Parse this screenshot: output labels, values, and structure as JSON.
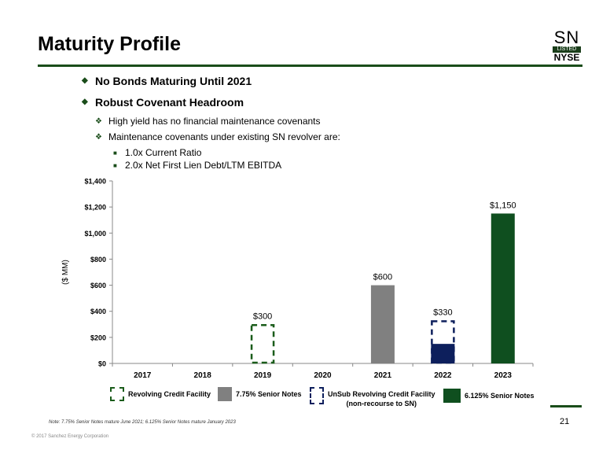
{
  "header": {
    "title": "Maturity Profile",
    "logo": {
      "top": "SN",
      "middle": "LISTED",
      "bottom": "NYSE"
    }
  },
  "bullets": [
    {
      "text": "No Bonds Maturing Until 2021"
    },
    {
      "text": "Robust Covenant Headroom"
    }
  ],
  "sub_bullets": [
    "High yield has no financial maintenance covenants",
    "Maintenance covenants under existing SN revolver are:"
  ],
  "sub_sub_bullets": [
    "1.0x Current Ratio",
    "2.0x Net First Lien Debt/LTM EBITDA"
  ],
  "chart_data": {
    "type": "bar",
    "title": "",
    "xlabel": "",
    "ylabel": "($ MM)",
    "ylim": [
      0,
      1400
    ],
    "yticks": [
      0,
      200,
      400,
      600,
      800,
      1000,
      1200,
      1400
    ],
    "ytick_labels": [
      "$0",
      "$200",
      "$400",
      "$600",
      "$800",
      "$1,000",
      "$1,200",
      "$1,400"
    ],
    "categories": [
      "2017",
      "2018",
      "2019",
      "2020",
      "2021",
      "2022",
      "2023"
    ],
    "series": [
      {
        "name": "Revolving Credit Facility",
        "color": "#1a5c1a",
        "style": "dashed-outline",
        "values": [
          0,
          0,
          300,
          0,
          0,
          0,
          0
        ]
      },
      {
        "name": "7.75% Senior Notes",
        "color": "#808080",
        "style": "solid",
        "values": [
          0,
          0,
          0,
          0,
          600,
          0,
          0
        ]
      },
      {
        "name": "UnSub Revolving Credit Facility (non-recourse to SN)",
        "color": "#0d1f5c",
        "style": "dashed-outline",
        "values": [
          0,
          0,
          0,
          0,
          0,
          330,
          0
        ]
      },
      {
        "name": "6.125% Senior Notes",
        "color": "#0f4f1f",
        "style": "solid",
        "values": [
          0,
          0,
          0,
          0,
          0,
          0,
          1150
        ]
      }
    ],
    "drawn_amount_2022": 150,
    "data_labels": [
      {
        "category": "2019",
        "value": 300,
        "text": "$300"
      },
      {
        "category": "2021",
        "value": 600,
        "text": "$600"
      },
      {
        "category": "2022",
        "value": 330,
        "text": "$330"
      },
      {
        "category": "2023",
        "value": 1150,
        "text": "$1,150"
      }
    ],
    "grid": false,
    "legend_position": "bottom"
  },
  "legend": {
    "items": [
      {
        "label": "Revolving Credit Facility"
      },
      {
        "label": "7.75% Senior Notes"
      },
      {
        "label": "UnSub Revolving Credit Facility",
        "label2": "(non-recourse to SN)"
      },
      {
        "label": "6.125% Senior Notes"
      }
    ]
  },
  "footer": {
    "note": "Note: 7.75% Senior Notes mature June 2021; 6.125% Senior Notes mature January 2023",
    "copyright": "© 2017 Sanchez Energy Corporation",
    "page": "21"
  }
}
